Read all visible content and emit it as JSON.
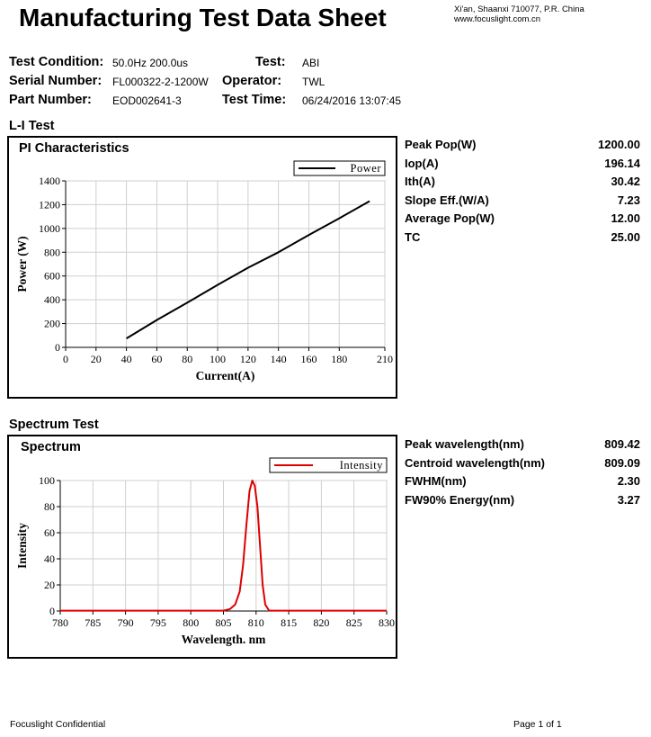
{
  "header": {
    "title": "Manufacturing Test Data Sheet",
    "address_line1": "Xi'an, Shaanxi 710077,  P.R.  China",
    "address_line2": "www.focuslight.com.cn"
  },
  "info": {
    "test_condition_label": "Test Condition:",
    "test_condition_value": "50.0Hz 200.0us",
    "serial_label": "Serial Number:",
    "serial_value": "FL000322-2-1200W",
    "part_label": "Part Number:",
    "part_value": "EOD002641-3",
    "test_label": "Test:",
    "test_value": "ABI",
    "operator_label": "Operator:",
    "operator_value": "TWL",
    "time_label": "Test Time:",
    "time_value": "06/24/2016 13:07:45"
  },
  "li": {
    "section_title": "L-I Test",
    "box_title": "PI Characteristics",
    "params": [
      {
        "label": "Peak Pop(W)",
        "value": "1200.00"
      },
      {
        "label": "Iop(A)",
        "value": "196.14"
      },
      {
        "label": "Ith(A)",
        "value": "30.42"
      },
      {
        "label": "Slope Eff.(W/A)",
        "value": "7.23"
      },
      {
        "label": "Average Pop(W)",
        "value": "12.00"
      },
      {
        "label": "TC",
        "value": "25.00"
      }
    ]
  },
  "spectrum": {
    "section_title": "Spectrum Test",
    "box_title": "Spectrum",
    "params": [
      {
        "label": "Peak wavelength(nm)",
        "value": "809.42"
      },
      {
        "label": "Centroid wavelength(nm)",
        "value": "809.09"
      },
      {
        "label": "FWHM(nm)",
        "value": "2.30"
      },
      {
        "label": "FW90% Energy(nm)",
        "value": "3.27"
      }
    ]
  },
  "footer": {
    "left": "Focuslight Confidential",
    "right": "Page 1 of 1"
  },
  "chart_data": [
    {
      "type": "line",
      "title": "PI Characteristics",
      "xlabel": "Current(A)",
      "ylabel": "Power (W)",
      "xlim": [
        0,
        210
      ],
      "ylim": [
        0,
        1400
      ],
      "xticks": [
        0,
        20,
        40,
        60,
        80,
        100,
        120,
        140,
        160,
        180,
        210
      ],
      "yticks": [
        0,
        200,
        400,
        600,
        800,
        1000,
        1200,
        1400
      ],
      "grid": true,
      "legend": "top-right",
      "color": "#000000",
      "series": [
        {
          "name": "Power",
          "x": [
            40,
            60,
            80,
            100,
            120,
            140,
            160,
            180,
            200
          ],
          "y": [
            75,
            230,
            375,
            525,
            670,
            800,
            945,
            1085,
            1230
          ]
        }
      ]
    },
    {
      "type": "line",
      "title": "Spectrum",
      "xlabel": "Wavelength. nm",
      "ylabel": "Intensity",
      "xlim": [
        780,
        830
      ],
      "ylim": [
        0,
        100
      ],
      "xticks": [
        780,
        785,
        790,
        795,
        800,
        805,
        810,
        815,
        820,
        825,
        830
      ],
      "yticks": [
        0,
        20,
        40,
        60,
        80,
        100
      ],
      "grid": true,
      "legend": "top-right",
      "color": "#dd0000",
      "series": [
        {
          "name": "Intensity",
          "x": [
            780,
            805,
            806,
            806.8,
            807.5,
            808,
            808.5,
            809,
            809.42,
            809.8,
            810.2,
            810.6,
            811,
            811.4,
            812,
            830
          ],
          "y": [
            0.3,
            0.3,
            1.5,
            5,
            15,
            35,
            65,
            92,
            100,
            96,
            80,
            50,
            20,
            5,
            0.3,
            0.3
          ]
        }
      ]
    }
  ]
}
